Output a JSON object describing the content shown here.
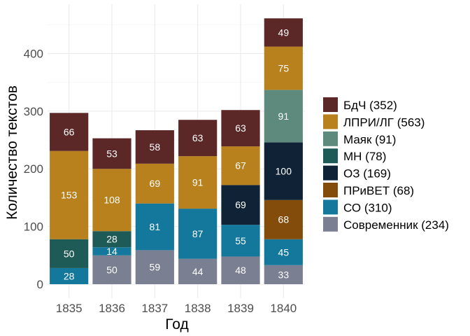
{
  "chart_data": {
    "type": "bar",
    "stacked": true,
    "xlabel": "Год",
    "ylabel": "Количество текстов",
    "ylim": [
      0,
      462
    ],
    "yticks": [
      0,
      100,
      200,
      300,
      400
    ],
    "grid": true,
    "legend_position": "right",
    "categories": [
      "1835",
      "1836",
      "1837",
      "1838",
      "1839",
      "1840"
    ],
    "series": [
      {
        "name": "Современник (234)",
        "color": "#7b7f92",
        "values": [
          0,
          50,
          59,
          44,
          48,
          33
        ]
      },
      {
        "name": "СО (310)",
        "color": "#14789c",
        "values": [
          28,
          14,
          81,
          87,
          55,
          45
        ]
      },
      {
        "name": "ПРиВЕТ (68)",
        "color": "#834c0b",
        "values": [
          0,
          0,
          0,
          0,
          0,
          68
        ]
      },
      {
        "name": "ОЗ (169)",
        "color": "#0f2236",
        "values": [
          0,
          0,
          0,
          0,
          69,
          100
        ]
      },
      {
        "name": "МН (78)",
        "color": "#1f5b56",
        "values": [
          50,
          28,
          0,
          0,
          0,
          0
        ]
      },
      {
        "name": "Маяк (91)",
        "color": "#5d8a7d",
        "values": [
          0,
          0,
          0,
          0,
          0,
          91
        ]
      },
      {
        "name": "ЛПРИ/ЛГ (563)",
        "color": "#b8811d",
        "values": [
          153,
          108,
          69,
          91,
          67,
          75
        ]
      },
      {
        "name": "БдЧ (352)",
        "color": "#5b2727",
        "values": [
          66,
          53,
          58,
          63,
          63,
          49
        ]
      }
    ],
    "legend_order": [
      "БдЧ (352)",
      "ЛПРИ/ЛГ (563)",
      "Маяк (91)",
      "МН (78)",
      "ОЗ (169)",
      "ПРиВЕТ (68)",
      "СО (310)",
      "Современник (234)"
    ]
  }
}
